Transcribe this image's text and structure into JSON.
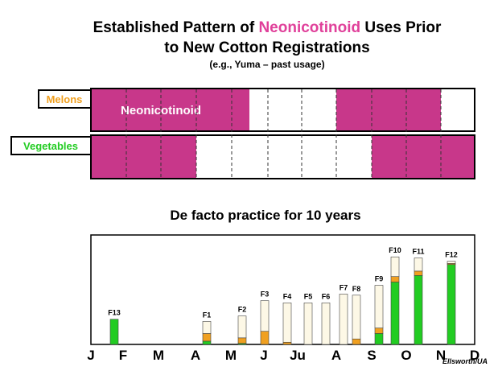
{
  "title": {
    "line1_start": "Established Pattern of ",
    "highlight": "Neonicotinoid",
    "line1_end": " Uses Prior",
    "line2": "to New Cotton Registrations",
    "subtitle": "(e.g., Yuma – past usage)"
  },
  "timeline": {
    "melons": "Melons",
    "vegetables": "Vegetables",
    "bar_text": "Neonicotinoid"
  },
  "chart_title": "De facto practice for 10 years",
  "months": [
    "J",
    "F",
    "M",
    "A",
    "M",
    "J",
    "Ju",
    "A",
    "S",
    "O",
    "N",
    "D"
  ],
  "credit": "Ellsworth/UA",
  "chart_data": {
    "type": "bar",
    "stacked": true,
    "ylim": [
      0,
      100
    ],
    "categories": [
      "F13",
      "F1",
      "F2",
      "F3",
      "F4",
      "F5",
      "F6",
      "F7",
      "F8",
      "F9",
      "F10",
      "F11",
      "F12"
    ],
    "series": [
      {
        "color": "#22cc22",
        "values": [
          23,
          3,
          1,
          0,
          0,
          0,
          0,
          0,
          0,
          10,
          57,
          63,
          73
        ]
      },
      {
        "color": "#f0a020",
        "values": [
          0,
          7,
          5,
          12,
          2,
          0,
          0,
          0,
          5,
          5,
          5,
          4,
          1
        ]
      },
      {
        "color": "#fdf8e6",
        "values": [
          0,
          11,
          20,
          28,
          36,
          38,
          38,
          46,
          40,
          39,
          18,
          12,
          2
        ]
      }
    ]
  }
}
